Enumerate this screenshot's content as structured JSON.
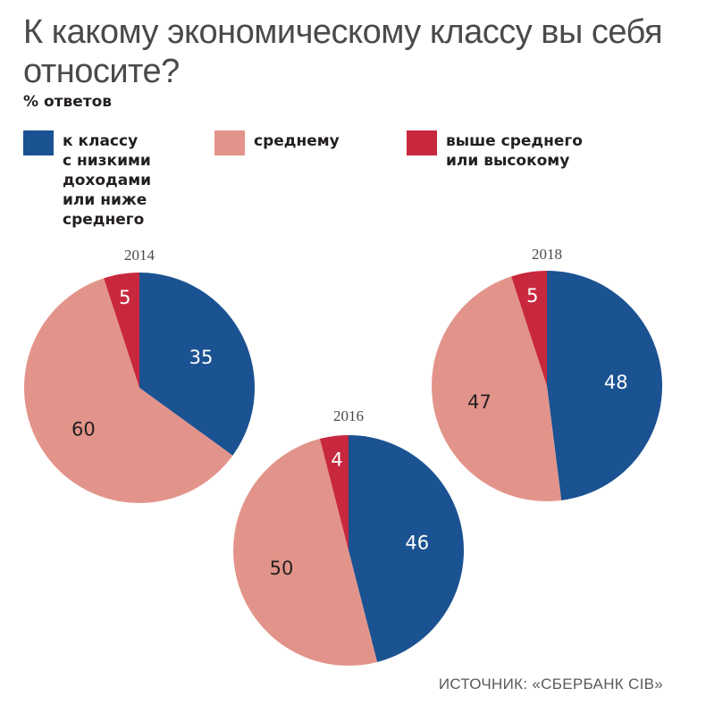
{
  "title": "К какому экономическому классу вы себя относите?",
  "subtitle": "% ответов",
  "legend": [
    {
      "label": "к классу\nс низкими\nдоходами\nили ниже\nсреднего",
      "color": "#1b5292"
    },
    {
      "label": "среднему",
      "color": "#e3948a"
    },
    {
      "label": "выше среднего\nили высокому",
      "color": "#c8283e"
    }
  ],
  "source": "ИСТОЧНИК: «СБЕРБАНК CIB»",
  "chart_data": {
    "type": "pie",
    "series_names": [
      "к классу с низкими доходами или ниже среднего",
      "среднему",
      "выше среднего или высокому"
    ],
    "colors": [
      "#1b5292",
      "#e3948a",
      "#c8283e"
    ],
    "label_colors": [
      "#ffffff",
      "#231f20",
      "#ffffff"
    ],
    "pies": [
      {
        "year": "2014",
        "values": [
          35,
          60,
          5
        ]
      },
      {
        "year": "2016",
        "values": [
          46,
          50,
          4
        ]
      },
      {
        "year": "2018",
        "values": [
          48,
          47,
          5
        ]
      }
    ]
  }
}
